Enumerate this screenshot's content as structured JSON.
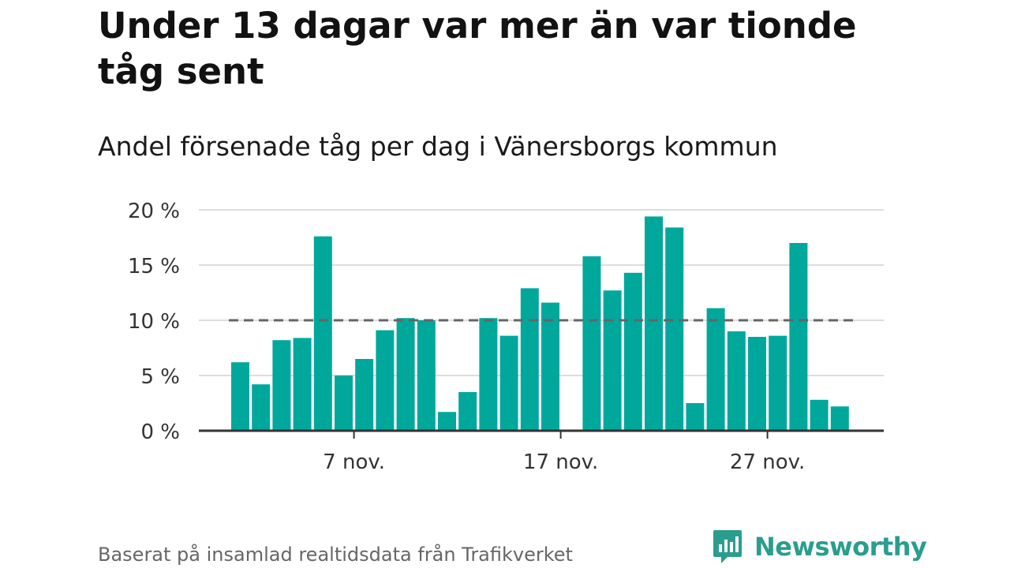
{
  "title": "Under 13 dagar var mer än var tionde tåg sent",
  "subtitle": "Andel försenade tåg per dag i Vänersborgs kommun",
  "source": "Baserat på insamlad realtidsdata från Trafikverket",
  "brand": "Newsworthy",
  "colors": {
    "bar": "#00a89c",
    "reference_line": "#666666",
    "grid": "#dddddd",
    "axis": "#333333",
    "brand": "#2a9d8f"
  },
  "chart_data": {
    "type": "bar",
    "x": [
      "1 nov.",
      "2 nov.",
      "3 nov.",
      "4 nov.",
      "5 nov.",
      "6 nov.",
      "7 nov.",
      "8 nov.",
      "9 nov.",
      "10 nov.",
      "11 nov.",
      "12 nov.",
      "13 nov.",
      "14 nov.",
      "15 nov.",
      "16 nov.",
      "17 nov.",
      "18 nov.",
      "19 nov.",
      "20 nov.",
      "21 nov.",
      "22 nov.",
      "23 nov.",
      "24 nov.",
      "25 nov.",
      "26 nov.",
      "27 nov.",
      "28 nov.",
      "29 nov.",
      "30 nov."
    ],
    "values": [
      6.2,
      4.2,
      8.2,
      8.4,
      17.6,
      5.0,
      6.5,
      9.1,
      10.2,
      10.0,
      1.7,
      3.5,
      10.2,
      8.6,
      12.9,
      11.6,
      null,
      15.8,
      12.7,
      14.3,
      19.4,
      18.4,
      2.5,
      11.1,
      9.0,
      8.5,
      8.6,
      17.0,
      2.8,
      2.2
    ],
    "ylim": [
      0,
      20
    ],
    "yticks": [
      0,
      5,
      10,
      15,
      20
    ],
    "ytick_labels": [
      "0 %",
      "5 %",
      "10 %",
      "15 %",
      "20 %"
    ],
    "xtick_labels": [
      {
        "day": 7,
        "label": "7 nov."
      },
      {
        "day": 17,
        "label": "17 nov."
      },
      {
        "day": 27,
        "label": "27 nov."
      }
    ],
    "reference_line": 10,
    "grid": true,
    "xlabel": "",
    "ylabel": ""
  }
}
